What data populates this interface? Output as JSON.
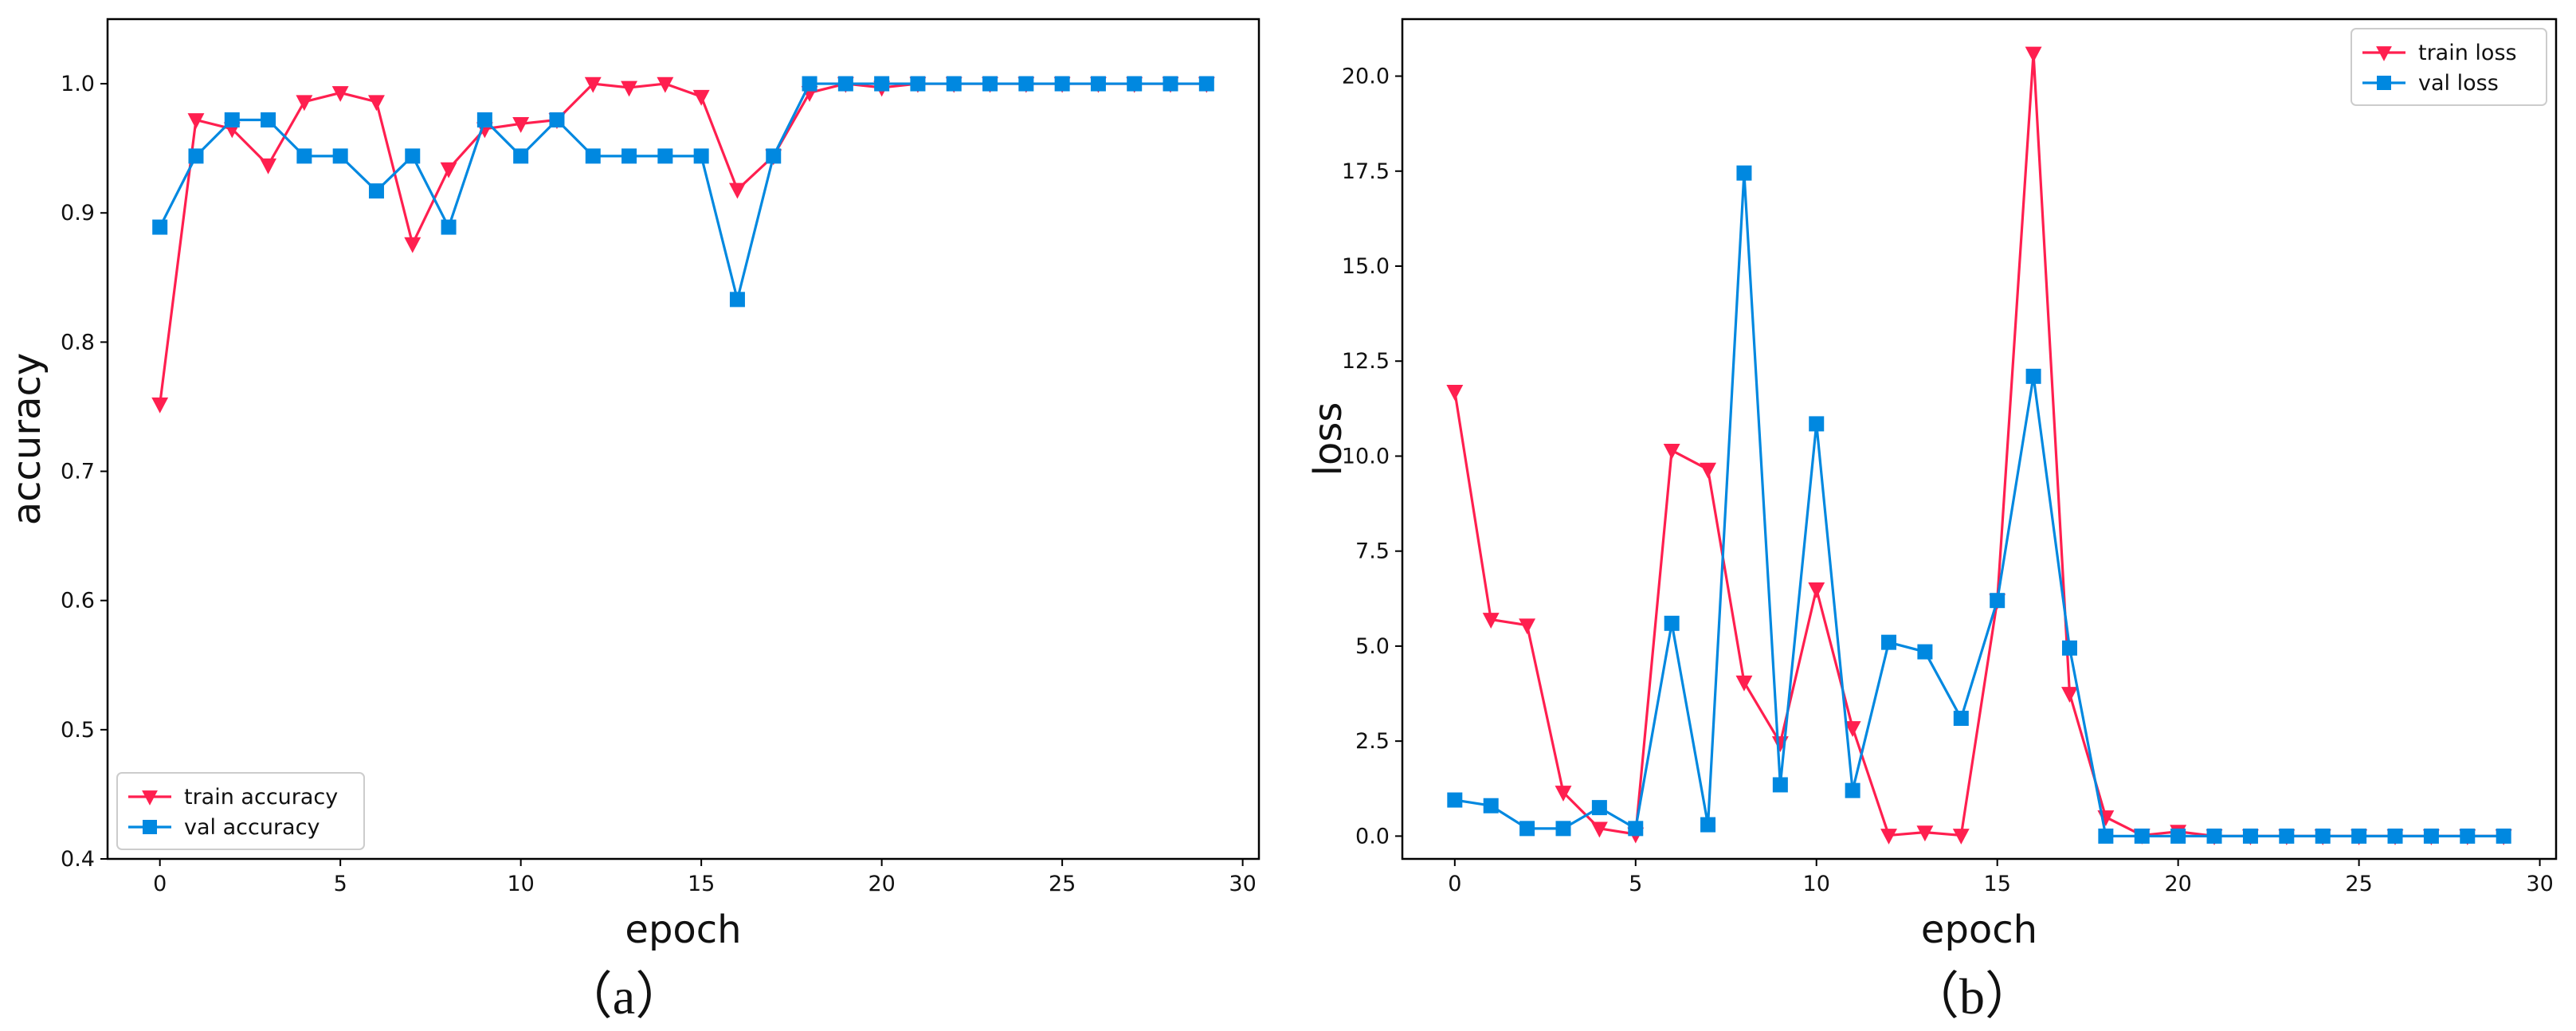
{
  "colors": {
    "train": "#ff1f4f",
    "val": "#0088e0"
  },
  "chart_data": [
    {
      "type": "line",
      "panel_label": "（a）",
      "xlabel": "epoch",
      "ylabel": "accuracy",
      "xlim": [
        -1.45,
        30.45
      ],
      "ylim": [
        0.4,
        1.05
      ],
      "xticks": [
        0,
        5,
        10,
        15,
        20,
        25,
        30
      ],
      "xtick_labels": [
        "0",
        "5",
        "10",
        "15",
        "20",
        "25",
        "30"
      ],
      "yticks": [
        0.4,
        0.5,
        0.6,
        0.7,
        0.8,
        0.9,
        1.0
      ],
      "ytick_labels": [
        "0.4",
        "0.5",
        "0.6",
        "0.7",
        "0.8",
        "0.9",
        "1.0"
      ],
      "legend_position": "lower-left",
      "grid": false,
      "x": [
        0,
        1,
        2,
        3,
        4,
        5,
        6,
        7,
        8,
        9,
        10,
        11,
        12,
        13,
        14,
        15,
        16,
        17,
        18,
        19,
        20,
        21,
        22,
        23,
        24,
        25,
        26,
        27,
        28,
        29
      ],
      "series": [
        {
          "name": "train accuracy",
          "marker": "triangle-down",
          "values": [
            0.752,
            0.972,
            0.965,
            0.937,
            0.986,
            0.993,
            0.986,
            0.876,
            0.934,
            0.965,
            0.969,
            0.972,
            1.0,
            0.997,
            1.0,
            0.99,
            0.918,
            0.944,
            0.993,
            1.0,
            0.997,
            1.0,
            1.0,
            1.0,
            1.0,
            1.0,
            1.0,
            1.0,
            1.0,
            1.0
          ]
        },
        {
          "name": "val accuracy",
          "marker": "square",
          "values": [
            0.889,
            0.944,
            0.972,
            0.972,
            0.944,
            0.944,
            0.917,
            0.944,
            0.889,
            0.972,
            0.944,
            0.972,
            0.944,
            0.944,
            0.944,
            0.944,
            0.833,
            0.944,
            1.0,
            1.0,
            1.0,
            1.0,
            1.0,
            1.0,
            1.0,
            1.0,
            1.0,
            1.0,
            1.0,
            1.0
          ]
        }
      ]
    },
    {
      "type": "line",
      "panel_label": "（b）",
      "xlabel": "epoch",
      "ylabel": "loss",
      "xlim": [
        -1.45,
        30.45
      ],
      "ylim": [
        -0.6,
        21.5
      ],
      "xticks": [
        0,
        5,
        10,
        15,
        20,
        25,
        30
      ],
      "xtick_labels": [
        "0",
        "5",
        "10",
        "15",
        "20",
        "25",
        "30"
      ],
      "yticks": [
        0,
        2.5,
        5,
        7.5,
        10,
        12.5,
        15,
        17.5,
        20
      ],
      "ytick_labels": [
        "0.0",
        "2.5",
        "5.0",
        "7.5",
        "10.0",
        "12.5",
        "15.0",
        "17.5",
        "20.0"
      ],
      "legend_position": "upper-right",
      "grid": false,
      "x": [
        0,
        1,
        2,
        3,
        4,
        5,
        6,
        7,
        8,
        9,
        10,
        11,
        12,
        13,
        14,
        15,
        16,
        17,
        18,
        19,
        20,
        21,
        22,
        23,
        24,
        25,
        26,
        27,
        28,
        29
      ],
      "series": [
        {
          "name": "train loss",
          "marker": "triangle-down",
          "values": [
            11.7,
            5.7,
            5.55,
            1.15,
            0.2,
            0.05,
            10.15,
            9.65,
            4.05,
            2.45,
            6.5,
            2.85,
            0.02,
            0.1,
            0.02,
            6.2,
            20.6,
            3.75,
            0.5,
            0.02,
            0.12,
            0.0,
            0.0,
            0.0,
            0.0,
            0.0,
            0.0,
            0.0,
            0.0,
            0.0
          ]
        },
        {
          "name": "val loss",
          "marker": "square",
          "values": [
            0.95,
            0.8,
            0.2,
            0.2,
            0.75,
            0.2,
            5.6,
            0.3,
            17.45,
            1.35,
            10.85,
            1.2,
            5.1,
            4.85,
            3.1,
            6.2,
            12.1,
            4.95,
            0.0,
            0.0,
            0.0,
            0.0,
            0.0,
            0.0,
            0.0,
            0.0,
            0.0,
            0.0,
            0.0,
            0.0
          ]
        }
      ]
    }
  ]
}
